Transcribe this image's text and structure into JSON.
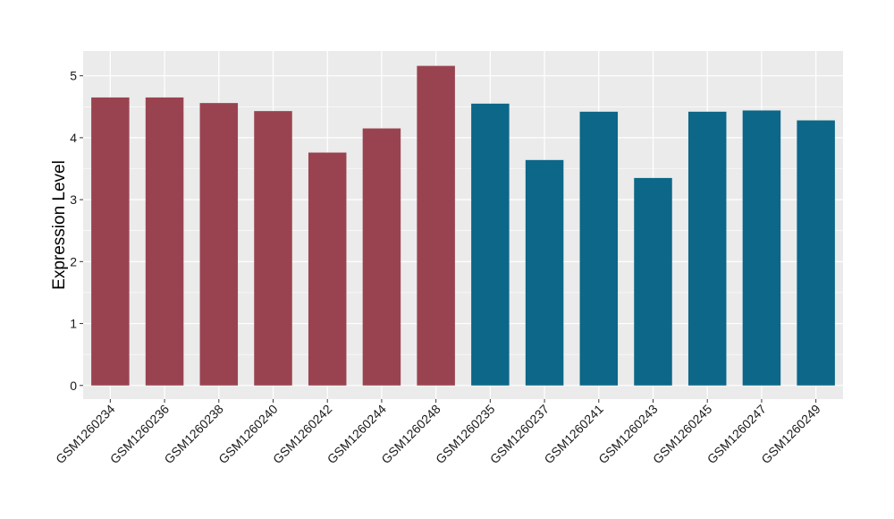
{
  "chart_data": {
    "type": "bar",
    "title": "",
    "xlabel": "",
    "ylabel": "Expression Level",
    "ylim": [
      -0.22,
      5.4
    ],
    "yticks": [
      0,
      1,
      2,
      3,
      4,
      5
    ],
    "grid": true,
    "legend": "none",
    "background": "#EBEBEB",
    "gridline_color": "#FFFFFF",
    "colors": {
      "group_a": "#9A4350",
      "group_b": "#0C6788"
    },
    "categories": [
      "GSM1260234",
      "GSM1260236",
      "GSM1260238",
      "GSM1260240",
      "GSM1260242",
      "GSM1260244",
      "GSM1260248",
      "GSM1260235",
      "GSM1260237",
      "GSM1260241",
      "GSM1260243",
      "GSM1260245",
      "GSM1260247",
      "GSM1260249"
    ],
    "values": [
      4.65,
      4.65,
      4.56,
      4.43,
      3.76,
      4.15,
      5.16,
      4.55,
      3.64,
      4.42,
      3.35,
      4.42,
      4.44,
      4.28
    ],
    "bar_groups": [
      "group_a",
      "group_a",
      "group_a",
      "group_a",
      "group_a",
      "group_a",
      "group_a",
      "group_b",
      "group_b",
      "group_b",
      "group_b",
      "group_b",
      "group_b",
      "group_b"
    ]
  }
}
